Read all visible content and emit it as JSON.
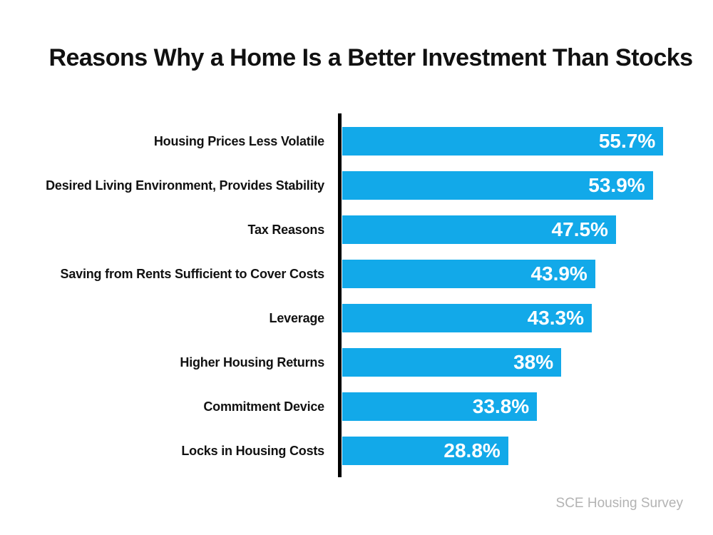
{
  "title": "Reasons Why a Home Is a Better Investment Than Stocks",
  "footer": {
    "source_label": "SCE Housing Survey"
  },
  "colors": {
    "bar": "#12A9E9",
    "axis": "#000000",
    "title_text": "#111111",
    "value_text": "#FFFFFF",
    "source_text": "#B3B3B3"
  },
  "chart_data": {
    "type": "bar",
    "orientation": "horizontal",
    "title": "Reasons Why a Home Is a Better Investment Than Stocks",
    "categories": [
      "Housing Prices Less Volatile",
      "Desired Living Environment, Provides Stability",
      "Tax Reasons",
      "Saving from Rents Sufficient to Cover Costs",
      "Leverage",
      "Higher Housing Returns",
      "Commitment Device",
      "Locks in Housing Costs"
    ],
    "values": [
      55.7,
      53.9,
      47.5,
      43.9,
      43.3,
      38,
      33.8,
      28.8
    ],
    "value_labels": [
      "55.7%",
      "53.9%",
      "47.5%",
      "43.9%",
      "43.3%",
      "38%",
      "33.8%",
      "28.8%"
    ],
    "xlabel": "",
    "ylabel": "",
    "xlim": [
      0,
      60
    ],
    "grid": false,
    "legend": false,
    "value_labels_position": "inside-end",
    "source": "SCE Housing Survey"
  }
}
